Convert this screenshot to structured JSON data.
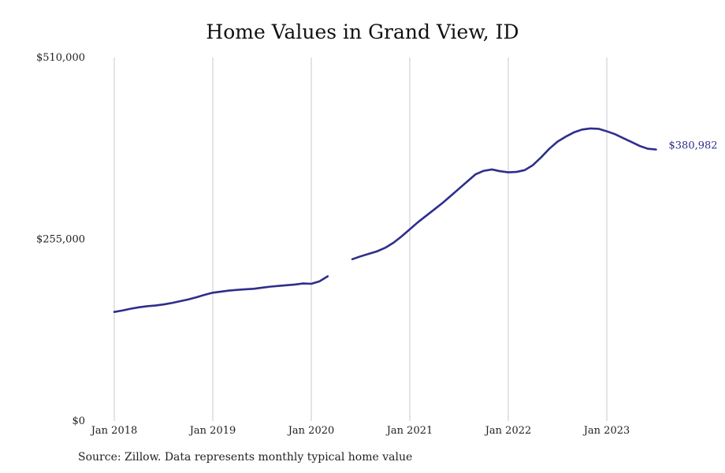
{
  "chart_data": {
    "type": "line",
    "title": "Home Values in Grand View, ID",
    "xlabel": "",
    "ylabel": "",
    "ylim": [
      0,
      510000
    ],
    "y_ticks": [
      {
        "value": 0,
        "label": "$0"
      },
      {
        "value": 255000,
        "label": "$255,000"
      },
      {
        "value": 510000,
        "label": "$510,000"
      }
    ],
    "x_ticks": [
      {
        "date": "2018-01",
        "label": "Jan 2018"
      },
      {
        "date": "2019-01",
        "label": "Jan 2019"
      },
      {
        "date": "2020-01",
        "label": "Jan 2020"
      },
      {
        "date": "2021-01",
        "label": "Jan 2021"
      },
      {
        "date": "2022-01",
        "label": "Jan 2022"
      },
      {
        "date": "2023-01",
        "label": "Jan 2023"
      }
    ],
    "grid": "vertical",
    "color": "#2e2e8c",
    "end_label": "$380,982",
    "series": [
      {
        "segments": [
          [
            [
              "2018-01",
              153000
            ],
            [
              "2018-02",
              155000
            ],
            [
              "2018-03",
              157500
            ],
            [
              "2018-04",
              159500
            ],
            [
              "2018-05",
              161000
            ],
            [
              "2018-06",
              162000
            ],
            [
              "2018-07",
              163500
            ],
            [
              "2018-08",
              165500
            ],
            [
              "2018-09",
              168000
            ],
            [
              "2018-10",
              170500
            ],
            [
              "2018-11",
              173500
            ],
            [
              "2018-12",
              177000
            ],
            [
              "2019-01",
              180000
            ],
            [
              "2019-02",
              181500
            ],
            [
              "2019-03",
              183000
            ],
            [
              "2019-04",
              184000
            ],
            [
              "2019-05",
              184800
            ],
            [
              "2019-06",
              185500
            ],
            [
              "2019-07",
              187000
            ],
            [
              "2019-08",
              188500
            ],
            [
              "2019-09",
              189500
            ],
            [
              "2019-10",
              190500
            ],
            [
              "2019-11",
              191500
            ],
            [
              "2019-12",
              193000
            ],
            [
              "2020-01",
              192500
            ],
            [
              "2020-02",
              196000
            ],
            [
              "2020-03",
              203000
            ]
          ],
          [
            [
              "2020-06",
              227000
            ],
            [
              "2020-07",
              231000
            ],
            [
              "2020-08",
              234500
            ],
            [
              "2020-09",
              238000
            ],
            [
              "2020-10",
              243000
            ],
            [
              "2020-11",
              250000
            ],
            [
              "2020-12",
              259000
            ],
            [
              "2021-01",
              269000
            ],
            [
              "2021-02",
              279000
            ],
            [
              "2021-03",
              288000
            ],
            [
              "2021-04",
              297000
            ],
            [
              "2021-05",
              306000
            ],
            [
              "2021-06",
              316000
            ],
            [
              "2021-07",
              326000
            ],
            [
              "2021-08",
              336000
            ],
            [
              "2021-09",
              346000
            ],
            [
              "2021-10",
              351000
            ],
            [
              "2021-11",
              353000
            ],
            [
              "2021-12",
              350500
            ],
            [
              "2022-01",
              349000
            ],
            [
              "2022-02",
              349500
            ],
            [
              "2022-03",
              352000
            ],
            [
              "2022-04",
              359000
            ],
            [
              "2022-05",
              370000
            ],
            [
              "2022-06",
              382000
            ],
            [
              "2022-07",
              392000
            ],
            [
              "2022-08",
              399000
            ],
            [
              "2022-09",
              405000
            ],
            [
              "2022-10",
              409000
            ],
            [
              "2022-11",
              410500
            ],
            [
              "2022-12",
              410000
            ],
            [
              "2023-01",
              406500
            ],
            [
              "2023-02",
              402500
            ],
            [
              "2023-03",
              397000
            ],
            [
              "2023-04",
              391500
            ],
            [
              "2023-05",
              386000
            ],
            [
              "2023-06",
              382000
            ],
            [
              "2023-07",
              380982
            ]
          ]
        ]
      }
    ]
  },
  "footer": {
    "source": "Source: Zillow. Data represents monthly typical home value"
  }
}
